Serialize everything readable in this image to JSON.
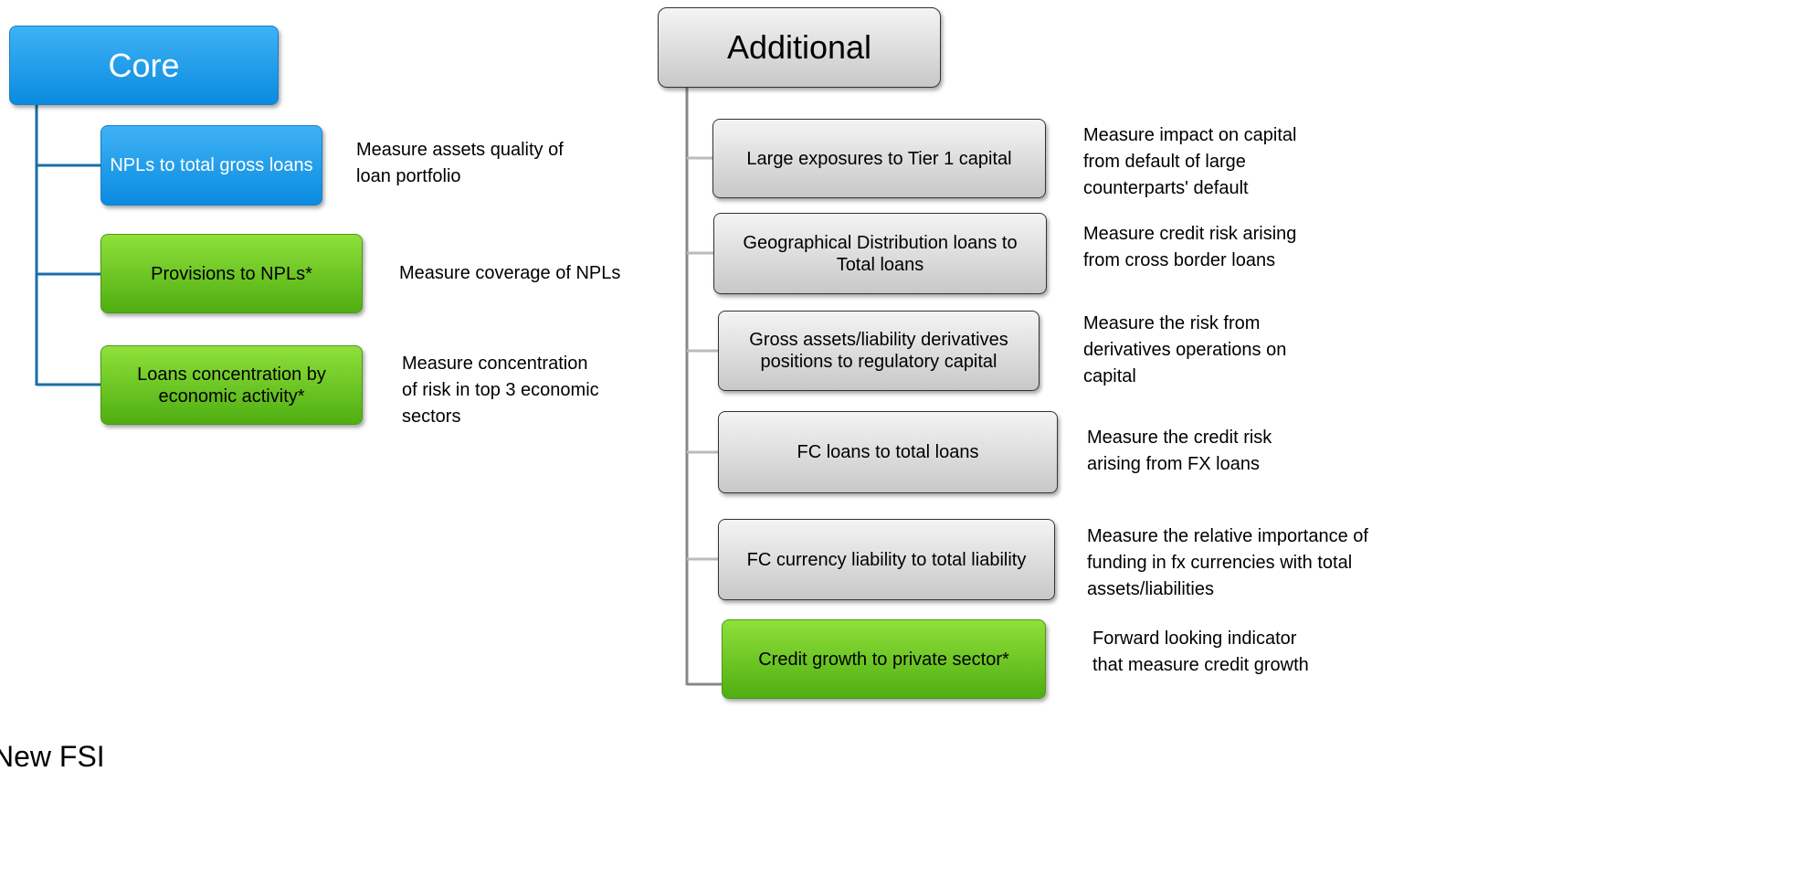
{
  "core": {
    "title": "Core",
    "items": [
      {
        "label": "NPLs to total gross loans",
        "description": [
          "Measure assets quality of",
          "loan portfolio"
        ]
      },
      {
        "label": "Provisions to NPLs*",
        "description": [
          "Measure coverage of NPLs"
        ]
      },
      {
        "label": "Loans concentration by economic activity*",
        "description": [
          "Measure concentration",
          "of risk in top 3 economic",
          "sectors"
        ]
      }
    ]
  },
  "additional": {
    "title": "Additional",
    "items": [
      {
        "label": "Large exposures to Tier 1 capital",
        "description": [
          "Measure impact on capital",
          "from default of large",
          "counterparts' default"
        ]
      },
      {
        "label": "Geographical Distribution loans to Total loans",
        "description": [
          "Measure credit risk arising",
          "from cross border loans"
        ]
      },
      {
        "label": "Gross assets/liability derivatives positions to regulatory capital",
        "description": [
          "Measure the risk from",
          "derivatives operations on",
          "capital"
        ]
      },
      {
        "label": "FC loans to total loans",
        "description": [
          "Measure the credit risk",
          "arising from FX loans"
        ]
      },
      {
        "label": "FC currency liability to total liability",
        "description": [
          "Measure the relative importance of",
          "funding in fx currencies with total",
          "assets/liabilities"
        ]
      },
      {
        "label": "Credit growth to private sector*",
        "description": [
          "Forward looking indicator",
          "that measure credit growth"
        ]
      }
    ]
  },
  "footer": "New FSI"
}
